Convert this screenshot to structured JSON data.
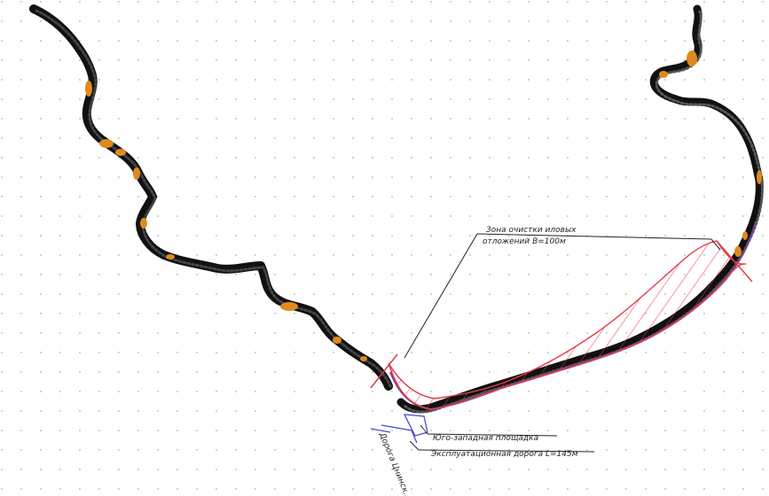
{
  "annotations": {
    "zone_line1": "Зона очистки иловых",
    "zone_line2": "отложений B=100м",
    "platform": "Юго-западная площадка",
    "road": "Эксплуатационная дорога L=145м",
    "road_vertical": "Дорога Цнинск..."
  },
  "colors": {
    "river_bank": "#111111",
    "deposit": "#e08a1e",
    "hatch": "#e23a4a",
    "boundary": "#7a3fa0",
    "road": "#4a4ad0",
    "leader": "#222222",
    "grid_dot": "#8fc98f"
  }
}
